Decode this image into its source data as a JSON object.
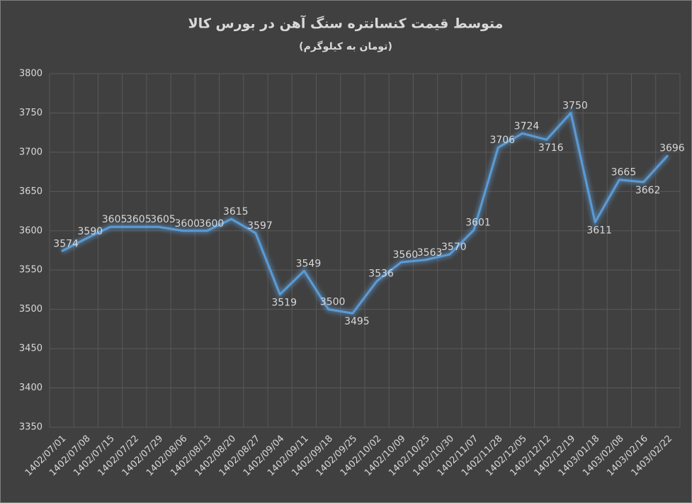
{
  "chart_data": {
    "type": "line",
    "title": "متوسط قیمت کنسانتره سنگ آهن در بورس کالا",
    "subtitle": "(تومان به کیلوگرم)",
    "categories": [
      "1402/07/01",
      "1402/07/08",
      "1402/07/15",
      "1402/07/22",
      "1402/07/29",
      "1402/08/06",
      "1402/08/13",
      "1402/08/20",
      "1402/08/27",
      "1402/09/04",
      "1402/09/11",
      "1402/09/18",
      "1402/09/25",
      "1402/10/02",
      "1402/10/09",
      "1402/10/25",
      "1402/10/30",
      "1402/11/07",
      "1402/11/28",
      "1402/12/05",
      "1402/12/12",
      "1402/12/19",
      "1403/01/18",
      "1403/02/08",
      "1403/02/16",
      "1403/02/22"
    ],
    "values": [
      3574,
      3590,
      3605,
      3605,
      3605,
      3600,
      3600,
      3615,
      3597,
      3519,
      3549,
      3500,
      3495,
      3536,
      3560,
      3563,
      3570,
      3601,
      3706,
      3724,
      3716,
      3750,
      3611,
      3665,
      3662,
      3696
    ],
    "color": "#5b9bd5",
    "ylim": [
      3350,
      3800
    ],
    "yticks": [
      3350,
      3400,
      3450,
      3500,
      3550,
      3600,
      3650,
      3700,
      3750,
      3800
    ],
    "grid": true
  }
}
